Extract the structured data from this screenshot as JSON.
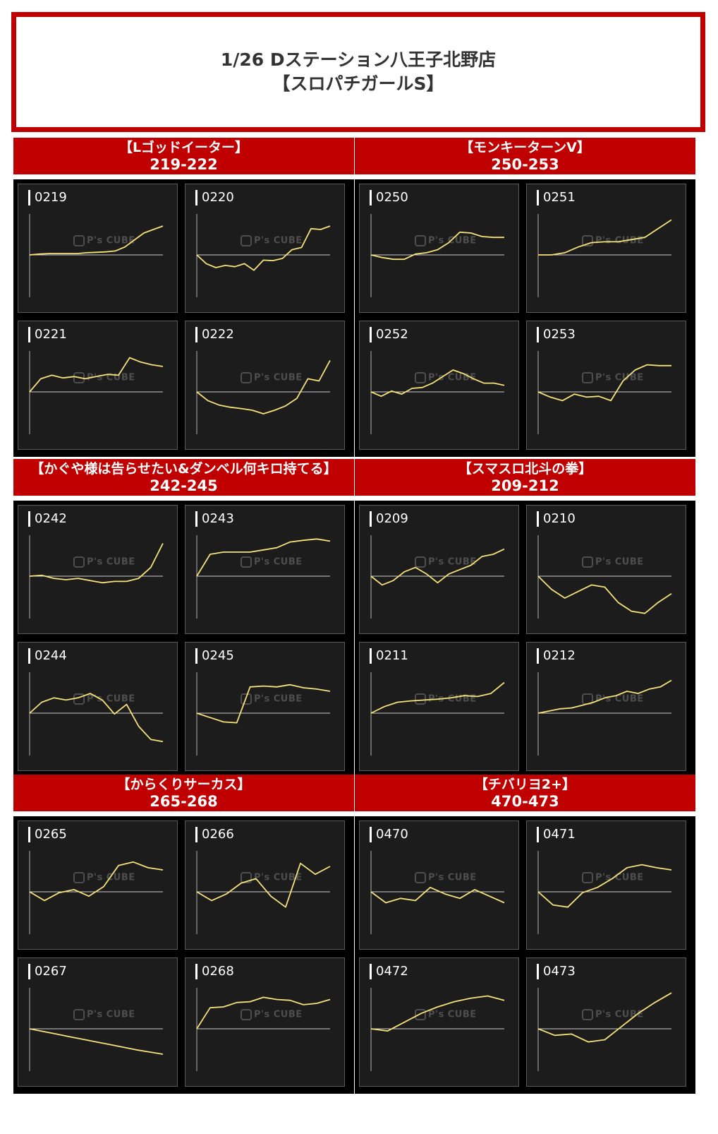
{
  "title": {
    "line1": "1/26 Dステーション八王子北野店",
    "line2": "【スロパチガールS】"
  },
  "watermark": "P's CUBE",
  "colors": {
    "accent": "#c00000",
    "line": "#f5e27a",
    "baseline": "#cccccc",
    "panel": "#1c1c1c"
  },
  "chart_data": [
    {
      "type": "line",
      "group": "【Lゴッドイーター】",
      "range": "219-222",
      "machines": [
        {
          "id": "0219",
          "y": [
            0,
            0.02,
            0.03,
            0.03,
            0.03,
            0.03,
            0.05,
            0.06,
            0.07,
            0.09,
            0.18,
            0.34,
            0.5,
            0.58,
            0.66
          ]
        },
        {
          "id": "0220",
          "y": [
            0,
            -0.2,
            -0.29,
            -0.24,
            -0.27,
            -0.2,
            -0.35,
            -0.12,
            -0.13,
            -0.08,
            0.12,
            0.17,
            0.6,
            0.58,
            0.66
          ]
        },
        {
          "id": "0221",
          "y": [
            0,
            0.3,
            0.38,
            0.32,
            0.35,
            0.3,
            0.35,
            0.4,
            0.38,
            0.78,
            0.68,
            0.62,
            0.58
          ]
        },
        {
          "id": "0222",
          "y": [
            0,
            -0.2,
            -0.3,
            -0.35,
            -0.38,
            -0.42,
            -0.5,
            -0.42,
            -0.32,
            -0.15,
            0.3,
            0.25,
            0.72
          ]
        }
      ]
    },
    {
      "type": "line",
      "group": "【モンキーターンV】",
      "range": "250-253",
      "machines": [
        {
          "id": "0250",
          "y": [
            0,
            -0.06,
            -0.1,
            -0.1,
            0.02,
            0.05,
            0.12,
            0.28,
            0.52,
            0.5,
            0.42,
            0.4,
            0.4
          ]
        },
        {
          "id": "0251",
          "y": [
            0,
            0,
            0.05,
            0.18,
            0.28,
            0.3,
            0.3,
            0.35,
            0.4,
            0.6,
            0.8
          ]
        },
        {
          "id": "0252",
          "y": [
            0,
            -0.1,
            0.02,
            -0.05,
            0.08,
            0.1,
            0.2,
            0.35,
            0.5,
            0.42,
            0.3,
            0.2,
            0.2,
            0.15
          ]
        },
        {
          "id": "0253",
          "y": [
            0,
            -0.12,
            -0.2,
            -0.05,
            -0.12,
            -0.1,
            -0.2,
            0.25,
            0.5,
            0.62,
            0.6,
            0.6
          ]
        }
      ]
    },
    {
      "type": "line",
      "group": "【かぐや様は告らせたい&ダンベル何キロ持てる】",
      "range": "242-245",
      "machines": [
        {
          "id": "0242",
          "y": [
            0,
            0.02,
            -0.05,
            -0.08,
            -0.05,
            -0.1,
            -0.15,
            -0.12,
            -0.12,
            -0.05,
            0.2,
            0.75
          ]
        },
        {
          "id": "0243",
          "y": [
            0,
            0.5,
            0.55,
            0.55,
            0.55,
            0.6,
            0.65,
            0.78,
            0.82,
            0.85,
            0.8
          ]
        },
        {
          "id": "0244",
          "y": [
            0,
            0.25,
            0.35,
            0.3,
            0.35,
            0.45,
            0.3,
            -0.02,
            0.2,
            -0.3,
            -0.6,
            -0.65
          ]
        },
        {
          "id": "0245",
          "y": [
            0,
            -0.1,
            -0.2,
            -0.22,
            0.6,
            0.62,
            0.6,
            0.65,
            0.58,
            0.55,
            0.5
          ]
        }
      ]
    },
    {
      "type": "line",
      "group": "【スマスロ北斗の拳】",
      "range": "209-212",
      "machines": [
        {
          "id": "0209",
          "y": [
            0,
            -0.2,
            -0.1,
            0.1,
            0.2,
            0.05,
            -0.15,
            0.05,
            0.15,
            0.25,
            0.45,
            0.5,
            0.62
          ]
        },
        {
          "id": "0210",
          "y": [
            0,
            -0.3,
            -0.5,
            -0.35,
            -0.2,
            -0.25,
            -0.6,
            -0.8,
            -0.85,
            -0.6,
            -0.4
          ]
        },
        {
          "id": "0211",
          "y": [
            0,
            0.15,
            0.25,
            0.28,
            0.3,
            0.32,
            0.35,
            0.4,
            0.38,
            0.45,
            0.7
          ]
        },
        {
          "id": "0212",
          "y": [
            0,
            0.05,
            0.1,
            0.12,
            0.18,
            0.25,
            0.35,
            0.4,
            0.5,
            0.45,
            0.55,
            0.6,
            0.75
          ]
        }
      ]
    },
    {
      "type": "line",
      "group": "【からくりサーカス】",
      "range": "265-268",
      "machines": [
        {
          "id": "0265",
          "y": [
            0,
            -0.2,
            -0.02,
            0.05,
            -0.1,
            0.12,
            0.6,
            0.68,
            0.55,
            0.5
          ]
        },
        {
          "id": "0266",
          "y": [
            0,
            -0.2,
            -0.05,
            0.2,
            0.3,
            -0.1,
            -0.35,
            0.65,
            0.4,
            0.58
          ]
        },
        {
          "id": "0267",
          "y": [
            0,
            -0.06,
            -0.12,
            -0.18,
            -0.24,
            -0.3,
            -0.36,
            -0.42,
            -0.48,
            -0.53,
            -0.58
          ]
        },
        {
          "id": "0268",
          "y": [
            0,
            0.48,
            0.5,
            0.6,
            0.62,
            0.72,
            0.67,
            0.65,
            0.55,
            0.58,
            0.67
          ]
        }
      ]
    },
    {
      "type": "line",
      "group": "【チバリヨ2+】",
      "range": "470-473",
      "machines": [
        {
          "id": "0470",
          "y": [
            0,
            -0.25,
            -0.15,
            -0.2,
            0.1,
            -0.05,
            -0.15,
            0.05,
            -0.1,
            -0.25
          ]
        },
        {
          "id": "0471",
          "y": [
            0,
            -0.3,
            -0.35,
            -0.02,
            0.1,
            0.3,
            0.55,
            0.62,
            0.55,
            0.5
          ]
        },
        {
          "id": "0472",
          "y": [
            0,
            -0.05,
            0.15,
            0.35,
            0.5,
            0.62,
            0.7,
            0.75,
            0.65
          ]
        },
        {
          "id": "0473",
          "y": [
            0,
            -0.15,
            -0.12,
            -0.3,
            -0.25,
            0.05,
            0.35,
            0.6,
            0.82
          ]
        }
      ]
    }
  ]
}
